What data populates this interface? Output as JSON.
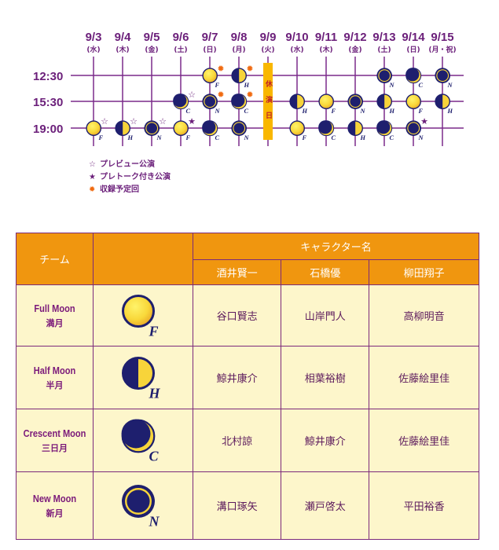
{
  "colors": {
    "purple": "#6b1f7a",
    "line": "#7a2a8a",
    "navy": "#1e1f6e",
    "yellow": "#f7d43a",
    "orange": "#f0960f",
    "cream": "#fdf6cb",
    "sun": "#f06a10"
  },
  "schedule": {
    "times": [
      "12:30",
      "15:30",
      "19:00"
    ],
    "dates": [
      {
        "date": "9/3",
        "day": "(水)",
        "shows": [
          {
            "time": 2,
            "team": "F",
            "mark": "☆"
          }
        ]
      },
      {
        "date": "9/4",
        "day": "(木)",
        "shows": [
          {
            "time": 2,
            "team": "H",
            "mark": "☆"
          }
        ]
      },
      {
        "date": "9/5",
        "day": "(金)",
        "shows": [
          {
            "time": 2,
            "team": "N",
            "mark": "☆"
          }
        ]
      },
      {
        "date": "9/6",
        "day": "(土)",
        "shows": [
          {
            "time": 1,
            "team": "C",
            "mark": "☆"
          },
          {
            "time": 2,
            "team": "F",
            "mark": "★"
          }
        ]
      },
      {
        "date": "9/7",
        "day": "(日)",
        "shows": [
          {
            "time": 0,
            "team": "F",
            "mark": "✹"
          },
          {
            "time": 1,
            "team": "N",
            "mark": "✹"
          },
          {
            "time": 2,
            "team": "C"
          }
        ]
      },
      {
        "date": "9/8",
        "day": "(月)",
        "shows": [
          {
            "time": 0,
            "team": "H",
            "mark": "✹"
          },
          {
            "time": 1,
            "team": "C",
            "mark": "✹"
          },
          {
            "time": 2,
            "team": "N"
          }
        ]
      },
      {
        "date": "9/9",
        "day": "(火)",
        "shows": [],
        "rest": "休演日"
      },
      {
        "date": "9/10",
        "day": "(水)",
        "shows": [
          {
            "time": 1,
            "team": "H"
          },
          {
            "time": 2,
            "team": "F"
          }
        ]
      },
      {
        "date": "9/11",
        "day": "(木)",
        "shows": [
          {
            "time": 1,
            "team": "F"
          },
          {
            "time": 2,
            "team": "C"
          }
        ]
      },
      {
        "date": "9/12",
        "day": "(金)",
        "shows": [
          {
            "time": 1,
            "team": "N"
          },
          {
            "time": 2,
            "team": "H"
          }
        ]
      },
      {
        "date": "9/13",
        "day": "(土)",
        "shows": [
          {
            "time": 0,
            "team": "N"
          },
          {
            "time": 1,
            "team": "H"
          },
          {
            "time": 2,
            "team": "C"
          }
        ]
      },
      {
        "date": "9/14",
        "day": "(日)",
        "shows": [
          {
            "time": 0,
            "team": "C"
          },
          {
            "time": 1,
            "team": "F"
          },
          {
            "time": 2,
            "team": "N",
            "mark": "★"
          }
        ]
      },
      {
        "date": "9/15",
        "day": "(月・祝)",
        "shows": [
          {
            "time": 0,
            "team": "N"
          },
          {
            "time": 1,
            "team": "H"
          }
        ]
      }
    ]
  },
  "legend": [
    {
      "symbol": "☆",
      "label": "プレビュー公演"
    },
    {
      "symbol": "★",
      "label": "プレトーク付き公演"
    },
    {
      "symbol": "✹",
      "label": "収録予定回"
    }
  ],
  "table": {
    "team_header": "チーム",
    "character_header": "キャラクター名",
    "characters": [
      "酒井賢一",
      "石橋優",
      "柳田翔子"
    ],
    "rows": [
      {
        "en": "Full Moon",
        "ja": "満月",
        "phase": "F",
        "cast": [
          "谷口賢志",
          "山岸門人",
          "高柳明音"
        ]
      },
      {
        "en": "Half Moon",
        "ja": "半月",
        "phase": "H",
        "cast": [
          "鯨井康介",
          "相葉裕樹",
          "佐藤絵里佳"
        ]
      },
      {
        "en": "Crescent Moon",
        "ja": "三日月",
        "phase": "C",
        "cast": [
          "北村諒",
          "鯨井康介",
          "佐藤絵里佳"
        ]
      },
      {
        "en": "New Moon",
        "ja": "新月",
        "phase": "N",
        "cast": [
          "溝口琢矢",
          "瀬戸啓太",
          "平田裕香"
        ]
      }
    ]
  }
}
